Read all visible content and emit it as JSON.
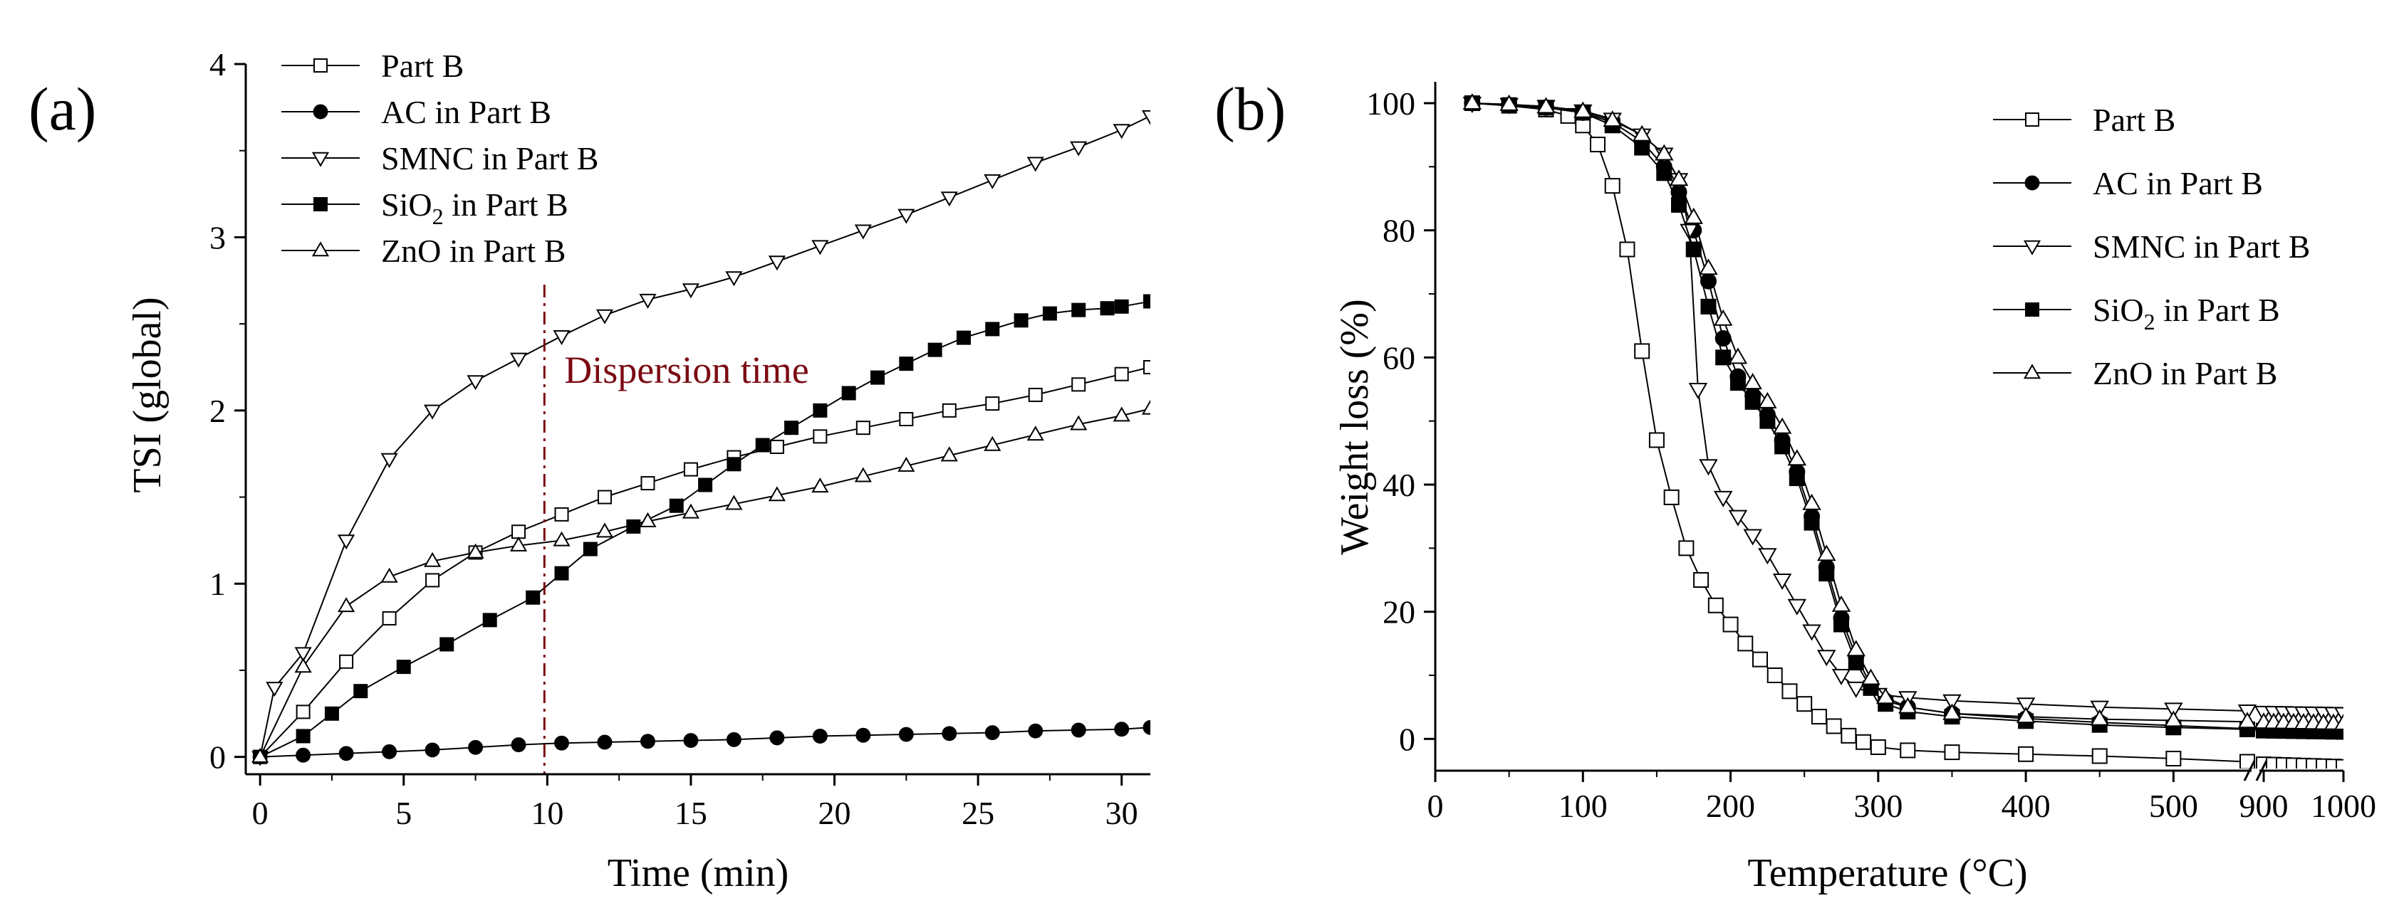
{
  "chart_data": [
    {
      "type": "line",
      "panel_label": "(a)",
      "xlabel": "Time (min)",
      "ylabel": "TSI (global)",
      "xlim": [
        -0.5,
        31
      ],
      "ylim": [
        -0.1,
        4
      ],
      "xticks": [
        0,
        5,
        10,
        15,
        20,
        25,
        30
      ],
      "yticks": [
        0,
        1,
        2,
        3,
        4
      ],
      "legend_position": "top-left",
      "annotation": {
        "text": "Dispersion time",
        "x": 9.9,
        "color": "#7b0a12"
      },
      "series": [
        {
          "name": "Part B",
          "marker": "open-square",
          "x": [
            0,
            1.5,
            3,
            4.5,
            6,
            7.5,
            9,
            10.5,
            12,
            13.5,
            15,
            16.5,
            18,
            19.5,
            21,
            22.5,
            24,
            25.5,
            27,
            28.5,
            30,
            31
          ],
          "y": [
            0,
            0.26,
            0.55,
            0.8,
            1.02,
            1.18,
            1.3,
            1.4,
            1.5,
            1.58,
            1.66,
            1.73,
            1.79,
            1.85,
            1.9,
            1.95,
            2.0,
            2.04,
            2.09,
            2.15,
            2.21,
            2.25
          ]
        },
        {
          "name": "AC in Part B",
          "marker": "filled-circle",
          "x": [
            0,
            1.5,
            3,
            4.5,
            6,
            7.5,
            9,
            10.5,
            12,
            13.5,
            15,
            16.5,
            18,
            19.5,
            21,
            22.5,
            24,
            25.5,
            27,
            28.5,
            30,
            31
          ],
          "y": [
            0,
            0.01,
            0.02,
            0.03,
            0.04,
            0.055,
            0.07,
            0.08,
            0.085,
            0.09,
            0.095,
            0.1,
            0.11,
            0.12,
            0.125,
            0.13,
            0.135,
            0.14,
            0.15,
            0.155,
            0.16,
            0.17
          ]
        },
        {
          "name": "SMNC in Part B",
          "marker": "open-triangle-down",
          "x": [
            0,
            0.5,
            1.5,
            3,
            4.5,
            6,
            7.5,
            9,
            10.5,
            12,
            13.5,
            15,
            16.5,
            18,
            19.5,
            21,
            22.5,
            24,
            25.5,
            27,
            28.5,
            30,
            31
          ],
          "y": [
            0,
            0.4,
            0.6,
            1.25,
            1.72,
            2.0,
            2.17,
            2.3,
            2.43,
            2.55,
            2.64,
            2.7,
            2.77,
            2.86,
            2.95,
            3.04,
            3.13,
            3.23,
            3.33,
            3.43,
            3.52,
            3.62,
            3.7
          ]
        },
        {
          "name": "SiO2 in Part B",
          "marker": "filled-square",
          "x": [
            0,
            1.5,
            2.5,
            3.5,
            5,
            6.5,
            8,
            9.5,
            10.5,
            11.5,
            13,
            14.5,
            15.5,
            16.5,
            17.5,
            18.5,
            19.5,
            20.5,
            21.5,
            22.5,
            23.5,
            24.5,
            25.5,
            26.5,
            27.5,
            28.5,
            29.5,
            30,
            31
          ],
          "y": [
            0,
            0.12,
            0.25,
            0.38,
            0.52,
            0.65,
            0.79,
            0.92,
            1.06,
            1.2,
            1.33,
            1.45,
            1.57,
            1.69,
            1.8,
            1.9,
            2.0,
            2.1,
            2.19,
            2.27,
            2.35,
            2.42,
            2.47,
            2.52,
            2.56,
            2.58,
            2.59,
            2.6,
            2.63
          ]
        },
        {
          "name": "ZnO in Part B",
          "marker": "open-triangle-up",
          "x": [
            0,
            1.5,
            3,
            4.5,
            6,
            7.5,
            9,
            10.5,
            12,
            13.5,
            15,
            16.5,
            18,
            19.5,
            21,
            22.5,
            24,
            25.5,
            27,
            28.5,
            30,
            31
          ],
          "y": [
            0,
            0.52,
            0.87,
            1.04,
            1.13,
            1.18,
            1.22,
            1.25,
            1.3,
            1.36,
            1.41,
            1.46,
            1.51,
            1.56,
            1.62,
            1.68,
            1.74,
            1.8,
            1.86,
            1.92,
            1.97,
            2.01
          ]
        }
      ]
    },
    {
      "type": "line",
      "panel_label": "(b)",
      "xlabel": "Temperature (°C)",
      "ylabel": "Weight loss (%)",
      "xlim": [
        0,
        1000
      ],
      "axis_break": {
        "from": 550,
        "to": 900
      },
      "ylim": [
        -5,
        100
      ],
      "xticks": [
        0,
        100,
        200,
        300,
        400,
        500,
        900,
        1000
      ],
      "yticks": [
        0,
        20,
        40,
        60,
        80,
        100
      ],
      "legend_position": "top-right",
      "series": [
        {
          "name": "Part B",
          "marker": "open-square",
          "x": [
            25,
            50,
            75,
            90,
            100,
            110,
            120,
            130,
            140,
            150,
            160,
            170,
            180,
            190,
            200,
            210,
            220,
            230,
            240,
            250,
            260,
            270,
            280,
            290,
            300,
            320,
            350,
            400,
            450,
            500,
            550,
            900,
            950,
            1000
          ],
          "y": [
            100,
            99.6,
            99,
            98,
            96.5,
            93.5,
            87,
            77,
            61,
            47,
            38,
            30,
            25,
            21,
            18,
            15,
            12.5,
            10,
            7.5,
            5.5,
            3.5,
            2,
            0.5,
            -0.5,
            -1.3,
            -1.8,
            -2.1,
            -2.4,
            -2.7,
            -3.1,
            -3.6,
            -4.0,
            -4.2,
            -4.4
          ]
        },
        {
          "name": "AC in Part B",
          "marker": "filled-circle",
          "x": [
            25,
            50,
            75,
            100,
            120,
            140,
            155,
            165,
            175,
            185,
            195,
            205,
            215,
            225,
            235,
            245,
            255,
            265,
            275,
            285,
            295,
            305,
            320,
            350,
            400,
            450,
            500,
            550,
            900,
            950,
            1000
          ],
          "y": [
            100,
            99.7,
            99.3,
            98.5,
            97,
            94,
            90,
            86,
            80,
            72,
            63,
            57,
            54,
            51,
            47,
            42,
            35,
            27,
            19,
            13,
            8.5,
            6,
            5,
            4,
            3.2,
            2.6,
            2.1,
            1.6,
            1.4,
            1.3,
            1.2
          ]
        },
        {
          "name": "SMNC in Part B",
          "marker": "open-triangle-down",
          "x": [
            25,
            50,
            75,
            100,
            120,
            140,
            155,
            165,
            172,
            178,
            185,
            195,
            205,
            215,
            225,
            235,
            245,
            255,
            265,
            275,
            285,
            300,
            320,
            350,
            400,
            450,
            500,
            550,
            900,
            950,
            1000
          ],
          "y": [
            100,
            99.8,
            99.5,
            98.8,
            97.5,
            95,
            92,
            88,
            80,
            55,
            43,
            38,
            35,
            32,
            29,
            25,
            21,
            17,
            13,
            10,
            8,
            7,
            6.5,
            6,
            5.5,
            5,
            4.7,
            4.4,
            4.2,
            4.1,
            4.0
          ]
        },
        {
          "name": "SiO2 in Part B",
          "marker": "filled-square",
          "x": [
            25,
            50,
            75,
            100,
            120,
            140,
            155,
            165,
            175,
            185,
            195,
            205,
            215,
            225,
            235,
            245,
            255,
            265,
            275,
            285,
            295,
            305,
            320,
            350,
            400,
            450,
            500,
            550,
            900,
            950,
            1000
          ],
          "y": [
            100,
            99.7,
            99.3,
            98.5,
            96.5,
            93,
            89,
            84,
            77,
            68,
            60,
            56,
            53,
            50,
            46,
            41,
            34,
            26,
            18,
            12,
            8,
            5.5,
            4.3,
            3.5,
            2.8,
            2.2,
            1.8,
            1.5,
            1.3,
            1.2,
            1.1
          ]
        },
        {
          "name": "ZnO in Part B",
          "marker": "open-triangle-up",
          "x": [
            25,
            50,
            75,
            100,
            120,
            140,
            155,
            165,
            175,
            185,
            195,
            205,
            215,
            225,
            235,
            245,
            255,
            265,
            275,
            285,
            295,
            305,
            320,
            350,
            400,
            450,
            500,
            550,
            900,
            950,
            1000
          ],
          "y": [
            100,
            99.8,
            99.4,
            98.7,
            97.3,
            95,
            92,
            88,
            82,
            74,
            66,
            60,
            56,
            53,
            49,
            44,
            37,
            29,
            21,
            14,
            9.5,
            6.5,
            5,
            4,
            3.5,
            3.1,
            2.9,
            2.7,
            2.6,
            2.5,
            2.4
          ]
        }
      ]
    }
  ]
}
